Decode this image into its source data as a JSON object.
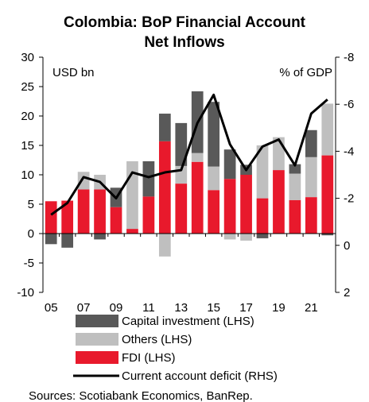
{
  "chart_data": {
    "type": "bar",
    "title_lines": [
      "Colombia: BoP Financial Account",
      "Net Inflows"
    ],
    "left_unit": "USD bn",
    "right_unit": "% of GDP",
    "ylim_left": [
      -10,
      30
    ],
    "y_ticks_left": [
      "-10",
      "-5",
      "0",
      "5",
      "10",
      "15",
      "20",
      "25",
      "30"
    ],
    "ylim_right_inverted": [
      -8,
      2
    ],
    "y_ticks_right": [
      "-8",
      "-6",
      "-4",
      "-2",
      "0",
      "2"
    ],
    "x_tick_labels": [
      "05",
      "07",
      "09",
      "11",
      "13",
      "15",
      "17",
      "19",
      "21"
    ],
    "categories": [
      "2005",
      "2006",
      "2007",
      "2008",
      "2009",
      "2010",
      "2011",
      "2012",
      "2013",
      "2014",
      "2015",
      "2016",
      "2017",
      "2018",
      "2019",
      "2020",
      "2021",
      "2022"
    ],
    "series": [
      {
        "name": "FDI (LHS)",
        "color": "#e8192c",
        "values": [
          5.5,
          5.6,
          7.5,
          7.5,
          4.5,
          0.8,
          6.3,
          15.7,
          8.5,
          12.2,
          7.4,
          9.3,
          10.0,
          6.0,
          10.8,
          5.7,
          6.2,
          13.3
        ]
      },
      {
        "name": "Others (LHS)",
        "color": "#bfbfbf",
        "values": [
          0.0,
          0.0,
          3.0,
          2.5,
          0.0,
          11.5,
          0.0,
          -3.9,
          3.0,
          1.5,
          4.0,
          -1.0,
          -1.2,
          9.0,
          5.6,
          4.5,
          6.8,
          8.8
        ]
      },
      {
        "name": "Capital investment (LHS)",
        "color": "#595959",
        "values": [
          -1.8,
          -2.4,
          0.0,
          -1.0,
          3.3,
          0.0,
          6.0,
          4.7,
          7.3,
          10.5,
          11.0,
          5.0,
          1.7,
          -0.8,
          0.0,
          1.6,
          4.6,
          -0.3
        ]
      },
      {
        "name": "Current account deficit (RHS)",
        "color": "#000000",
        "values": [
          -1.3,
          -1.8,
          -2.9,
          -2.7,
          -2.0,
          -3.1,
          -2.9,
          -3.1,
          -3.2,
          -5.2,
          -6.4,
          -4.3,
          -3.2,
          -4.2,
          -4.5,
          -3.4,
          -5.6,
          -6.2
        ]
      }
    ],
    "legend_order": [
      "Capital investment (LHS)",
      "Others (LHS)",
      "FDI (LHS)",
      "Current account deficit (RHS)"
    ],
    "legend_placement": "bottom",
    "grid": false
  },
  "source_note": "Sources: Scotiabank Economics, BanRep."
}
